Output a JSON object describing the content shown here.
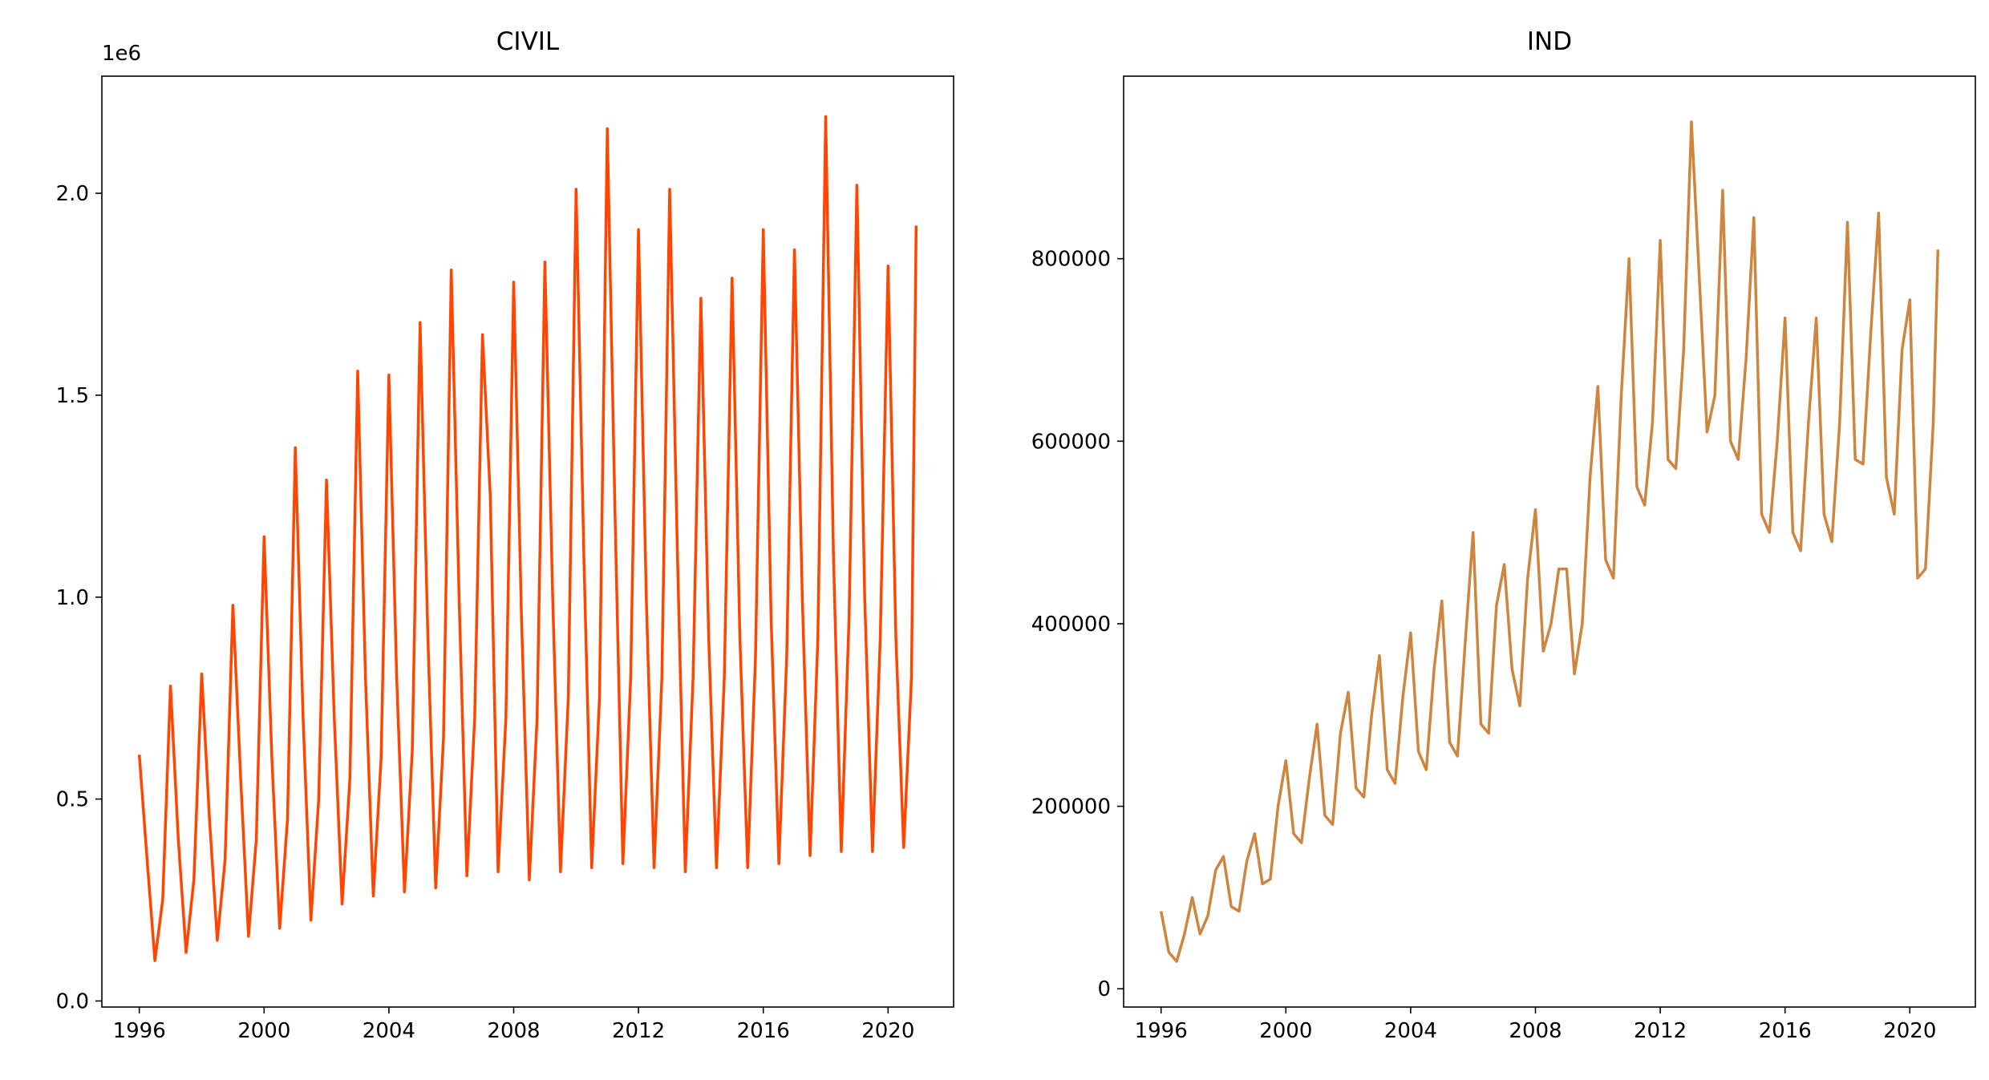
{
  "chart_data": [
    {
      "type": "line",
      "title": "CIVIL",
      "offset_label": "1e6",
      "color": "#ff4500",
      "x": [
        1996,
        1996.25,
        1996.5,
        1996.75,
        1997,
        1997.25,
        1997.5,
        1997.75,
        1998,
        1998.25,
        1998.5,
        1998.75,
        1999,
        1999.25,
        1999.5,
        1999.75,
        2000,
        2000.25,
        2000.5,
        2000.75,
        2001,
        2001.25,
        2001.5,
        2001.75,
        2002,
        2002.25,
        2002.5,
        2002.75,
        2003,
        2003.25,
        2003.5,
        2003.75,
        2004,
        2004.25,
        2004.5,
        2004.75,
        2005,
        2005.25,
        2005.5,
        2005.75,
        2006,
        2006.25,
        2006.5,
        2006.75,
        2007,
        2007.25,
        2007.5,
        2007.75,
        2008,
        2008.25,
        2008.5,
        2008.75,
        2009,
        2009.25,
        2009.5,
        2009.75,
        2010,
        2010.25,
        2010.5,
        2010.75,
        2011,
        2011.25,
        2011.5,
        2011.75,
        2012,
        2012.25,
        2012.5,
        2012.75,
        2013,
        2013.25,
        2013.5,
        2013.75,
        2014,
        2014.25,
        2014.5,
        2014.75,
        2015,
        2015.25,
        2015.5,
        2015.75,
        2016,
        2016.25,
        2016.5,
        2016.75,
        2017,
        2017.25,
        2017.5,
        2017.75,
        2018,
        2018.25,
        2018.5,
        2018.75,
        2019,
        2019.25,
        2019.5,
        2019.75,
        2020,
        2020.25,
        2020.5,
        2020.75,
        2020.9
      ],
      "values": [
        0.61,
        0.35,
        0.1,
        0.25,
        0.78,
        0.4,
        0.12,
        0.3,
        0.81,
        0.45,
        0.15,
        0.35,
        0.98,
        0.55,
        0.16,
        0.4,
        1.15,
        0.6,
        0.18,
        0.45,
        1.37,
        0.7,
        0.2,
        0.5,
        1.29,
        0.7,
        0.24,
        0.55,
        1.56,
        0.8,
        0.26,
        0.6,
        1.55,
        0.8,
        0.27,
        0.62,
        1.68,
        0.9,
        0.28,
        0.65,
        1.81,
        1.0,
        0.31,
        0.7,
        1.65,
        1.25,
        0.32,
        0.7,
        1.78,
        0.95,
        0.3,
        0.7,
        1.83,
        1.0,
        0.32,
        0.75,
        2.01,
        1.1,
        0.33,
        0.75,
        2.16,
        1.2,
        0.34,
        0.8,
        1.91,
        1.0,
        0.33,
        0.8,
        2.01,
        1.1,
        0.32,
        0.8,
        1.74,
        0.9,
        0.33,
        0.8,
        1.79,
        0.9,
        0.33,
        0.85,
        1.91,
        0.95,
        0.34,
        0.85,
        1.86,
        1.0,
        0.36,
        0.9,
        2.19,
        1.1,
        0.37,
        0.95,
        2.02,
        1.0,
        0.37,
        0.9,
        1.82,
        0.9,
        0.38,
        0.8,
        1.92
      ],
      "xlim": [
        1994.8,
        2022.1
      ],
      "xticks": [
        1996,
        2000,
        2004,
        2008,
        2012,
        2016,
        2020
      ],
      "ylim": [
        -0.015,
        2.29
      ],
      "yticks": [
        {
          "value": 0,
          "label": "0.0"
        },
        0.5,
        {
          "value": 1,
          "label": "1.0"
        },
        1.5,
        {
          "value": 2,
          "label": "2.0"
        }
      ]
    },
    {
      "type": "line",
      "title": "IND",
      "color": "#cd853f",
      "x": [
        1996,
        1996.25,
        1996.5,
        1996.75,
        1997,
        1997.25,
        1997.5,
        1997.75,
        1998,
        1998.25,
        1998.5,
        1998.75,
        1999,
        1999.25,
        1999.5,
        1999.75,
        2000,
        2000.25,
        2000.5,
        2000.75,
        2001,
        2001.25,
        2001.5,
        2001.75,
        2002,
        2002.25,
        2002.5,
        2002.75,
        2003,
        2003.25,
        2003.5,
        2003.75,
        2004,
        2004.25,
        2004.5,
        2004.75,
        2005,
        2005.25,
        2005.5,
        2005.75,
        2006,
        2006.25,
        2006.5,
        2006.75,
        2007,
        2007.25,
        2007.5,
        2007.75,
        2008,
        2008.25,
        2008.5,
        2008.75,
        2009,
        2009.25,
        2009.5,
        2009.75,
        2010,
        2010.25,
        2010.5,
        2010.75,
        2011,
        2011.25,
        2011.5,
        2011.75,
        2012,
        2012.25,
        2012.5,
        2012.75,
        2013,
        2013.25,
        2013.5,
        2013.75,
        2014,
        2014.25,
        2014.5,
        2014.75,
        2015,
        2015.25,
        2015.5,
        2015.75,
        2016,
        2016.25,
        2016.5,
        2016.75,
        2017,
        2017.25,
        2017.5,
        2017.75,
        2018,
        2018.25,
        2018.5,
        2018.75,
        2019,
        2019.25,
        2019.5,
        2019.75,
        2020,
        2020.25,
        2020.5,
        2020.75,
        2020.9
      ],
      "values": [
        85000,
        40000,
        30000,
        60000,
        100000,
        60000,
        80000,
        130000,
        145000,
        90000,
        85000,
        140000,
        170000,
        115000,
        120000,
        200000,
        250000,
        170000,
        160000,
        230000,
        290000,
        190000,
        180000,
        280000,
        325000,
        220000,
        210000,
        300000,
        365000,
        240000,
        225000,
        320000,
        390000,
        260000,
        240000,
        350000,
        425000,
        270000,
        255000,
        380000,
        500000,
        290000,
        280000,
        420000,
        465000,
        350000,
        310000,
        450000,
        525000,
        370000,
        400000,
        460000,
        460000,
        345000,
        400000,
        560000,
        660000,
        470000,
        450000,
        650000,
        800000,
        550000,
        530000,
        620000,
        820000,
        580000,
        570000,
        700000,
        950000,
        780000,
        610000,
        650000,
        875000,
        600000,
        580000,
        690000,
        845000,
        520000,
        500000,
        600000,
        735000,
        500000,
        480000,
        620000,
        735000,
        520000,
        490000,
        620000,
        840000,
        580000,
        575000,
        720000,
        850000,
        560000,
        520000,
        700000,
        755000,
        450000,
        460000,
        620000,
        810000
      ],
      "xlim": [
        1994.8,
        2022.1
      ],
      "xticks": [
        1996,
        2000,
        2004,
        2008,
        2012,
        2016,
        2020
      ],
      "ylim": [
        -20000,
        1000000
      ],
      "yticks": [
        0,
        200000,
        400000,
        600000,
        800000
      ]
    }
  ]
}
